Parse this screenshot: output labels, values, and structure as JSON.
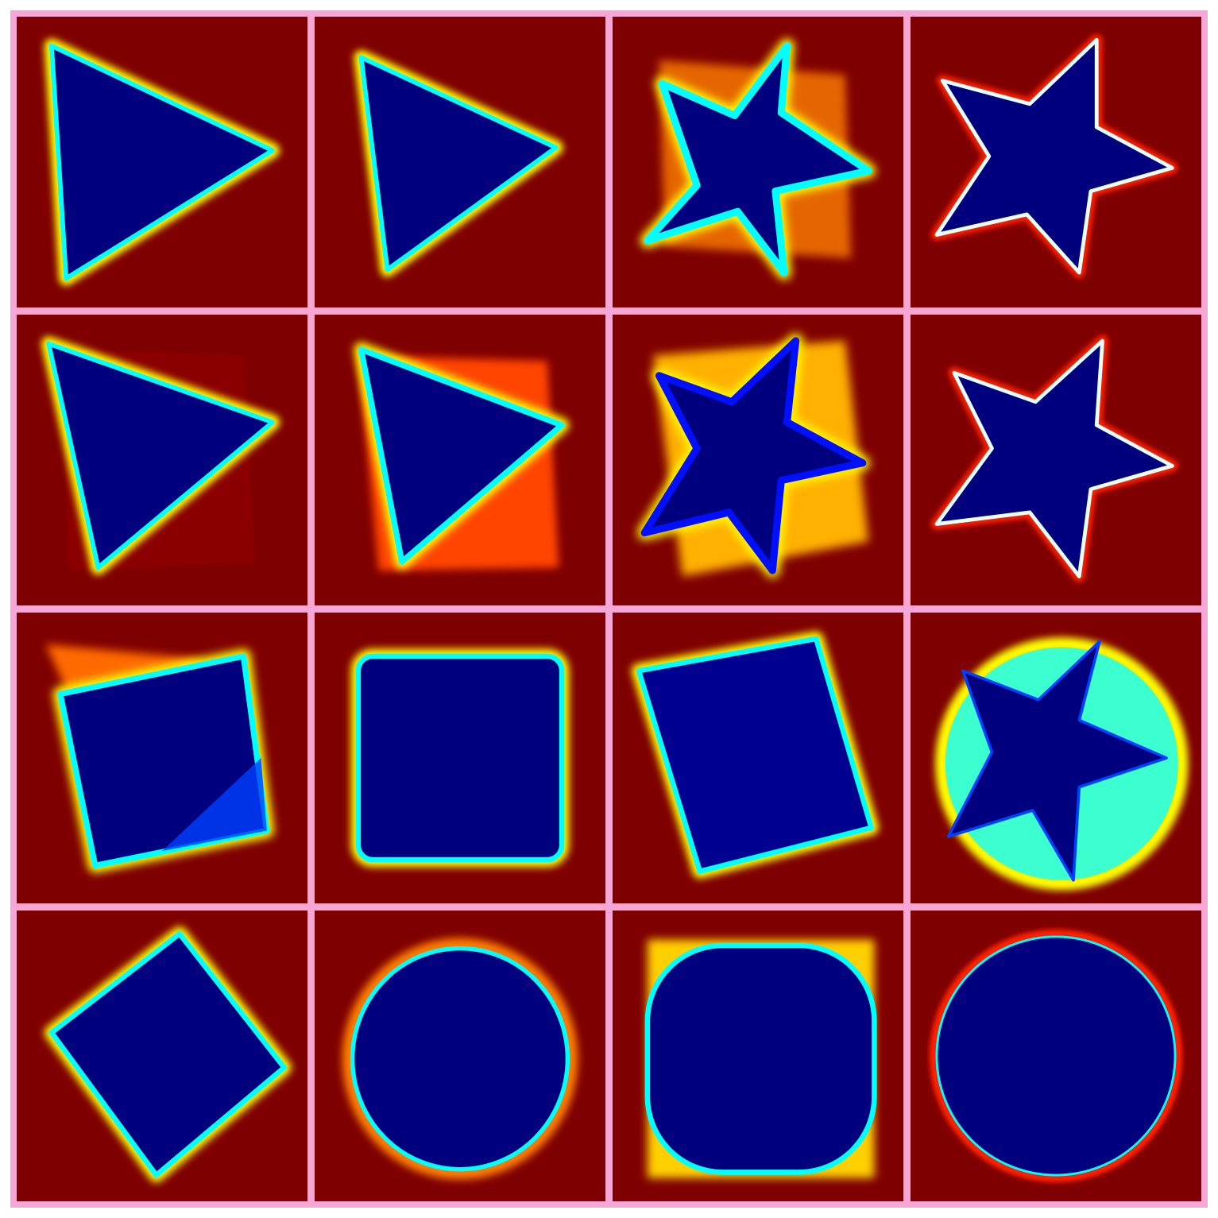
{
  "frame_color": "#f8a6d6",
  "background_color": "#7f0000",
  "colormap": [
    "#00007f",
    "#0000ff",
    "#00ffff",
    "#ffff00",
    "#ff0000",
    "#7f0000"
  ],
  "panels": [
    {
      "shape": "triangle",
      "ghost": "none",
      "ring": "cyan",
      "halo": "yellow"
    },
    {
      "shape": "triangle",
      "ghost": "none",
      "ring": "cyan",
      "halo": "yellow"
    },
    {
      "shape": "star",
      "ghost": "square",
      "ring": "cyan",
      "halo": "yellow"
    },
    {
      "shape": "star",
      "ghost": "none",
      "ring": "white",
      "halo": "red"
    },
    {
      "shape": "triangle",
      "ghost": "square",
      "ring": "cyan",
      "halo": "yellow"
    },
    {
      "shape": "triangle",
      "ghost": "square",
      "ring": "cyan",
      "halo": "yellow"
    },
    {
      "shape": "star",
      "ghost": "square",
      "ring": "blue",
      "halo": "yellow"
    },
    {
      "shape": "star",
      "ghost": "none",
      "ring": "white",
      "halo": "red"
    },
    {
      "shape": "square",
      "ghost": "triangle",
      "ring": "cyan",
      "halo": "yellow"
    },
    {
      "shape": "square",
      "ghost": "none",
      "ring": "cyan",
      "halo": "yellow"
    },
    {
      "shape": "square",
      "ghost": "none",
      "ring": "cyan",
      "halo": "yellow"
    },
    {
      "shape": "circle-star",
      "ghost": "none",
      "ring": "cyan",
      "halo": "yellow"
    },
    {
      "shape": "square",
      "ghost": "none",
      "ring": "cyan",
      "halo": "yellow"
    },
    {
      "shape": "circle",
      "ghost": "none",
      "ring": "cyan",
      "halo": "yellow"
    },
    {
      "shape": "circle",
      "ghost": "square",
      "ring": "cyan",
      "halo": "yellow"
    },
    {
      "shape": "circle",
      "ghost": "none",
      "ring": "white",
      "halo": "red"
    }
  ]
}
